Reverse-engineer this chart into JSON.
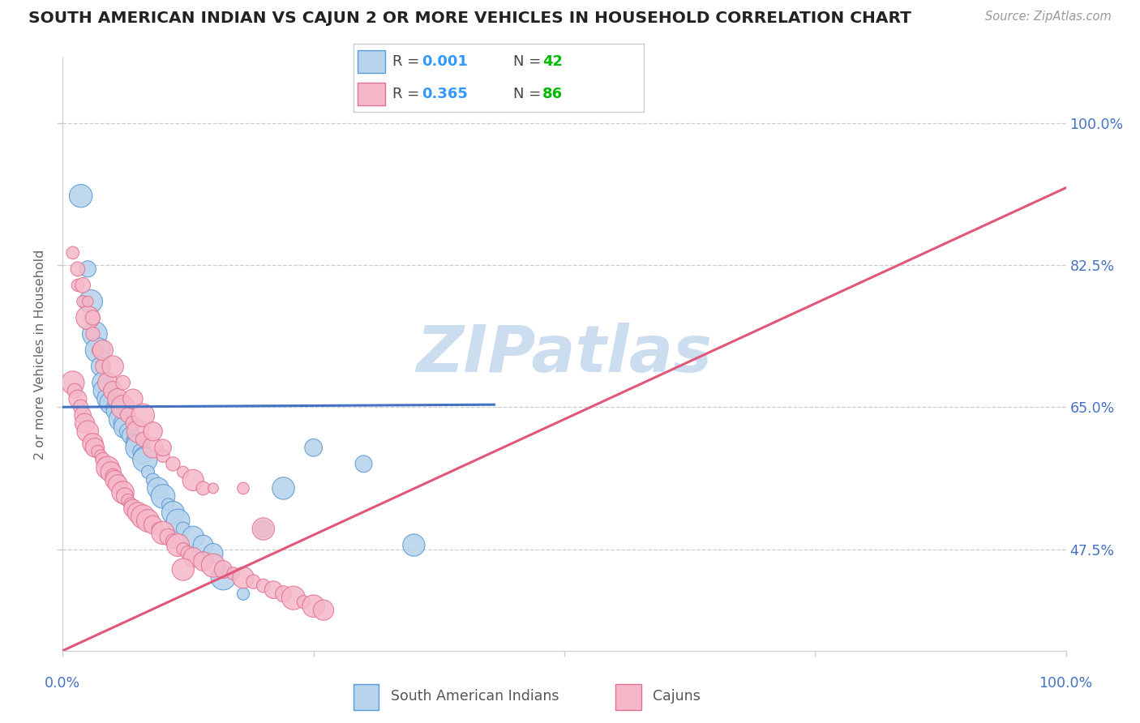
{
  "title": "SOUTH AMERICAN INDIAN VS CAJUN 2 OR MORE VEHICLES IN HOUSEHOLD CORRELATION CHART",
  "source": "Source: ZipAtlas.com",
  "ylabel": "2 or more Vehicles in Household",
  "yticks": [
    47.5,
    65.0,
    82.5,
    100.0
  ],
  "ytick_labels": [
    "47.5%",
    "65.0%",
    "82.5%",
    "100.0%"
  ],
  "xmin": 0.0,
  "xmax": 100.0,
  "ymin": 35.0,
  "ymax": 108.0,
  "blue_R": "0.001",
  "blue_N": "42",
  "pink_R": "0.365",
  "pink_N": "86",
  "blue_fill": "#b8d4ed",
  "pink_fill": "#f5b8c8",
  "blue_edge": "#5b9bd5",
  "pink_edge": "#e07090",
  "blue_label": "South American Indians",
  "pink_label": "Cajuns",
  "blue_line": "#4472c4",
  "pink_line": "#e05878",
  "watermark": "ZIPatlas",
  "watermark_color": "#ccddf0",
  "R_color": "#3399ff",
  "N_color": "#00bb00",
  "grid_color": "#cccccc",
  "title_color": "#222222",
  "source_color": "#999999",
  "ylabel_color": "#666666",
  "axis_label_color": "#4472c4",
  "bottom_label_color": "#555555",
  "blue_scatter_x": [
    1.8,
    2.5,
    2.8,
    3.2,
    3.5,
    3.8,
    4.0,
    4.2,
    4.5,
    4.8,
    5.0,
    5.2,
    5.5,
    5.8,
    6.0,
    6.2,
    6.5,
    6.8,
    7.0,
    7.2,
    7.5,
    7.8,
    8.0,
    8.2,
    8.5,
    9.0,
    9.5,
    10.0,
    10.5,
    11.0,
    11.5,
    12.0,
    13.0,
    14.0,
    15.0,
    16.0,
    18.0,
    20.0,
    22.0,
    25.0,
    30.0,
    35.0
  ],
  "blue_scatter_y": [
    91.0,
    82.0,
    78.0,
    74.0,
    72.0,
    70.0,
    68.0,
    67.0,
    66.0,
    65.5,
    65.0,
    64.5,
    64.0,
    63.5,
    63.0,
    62.5,
    62.0,
    61.5,
    61.0,
    60.5,
    60.0,
    59.5,
    59.0,
    58.5,
    57.0,
    56.0,
    55.0,
    54.0,
    53.0,
    52.0,
    51.0,
    50.0,
    49.0,
    48.0,
    47.0,
    44.0,
    42.0,
    50.0,
    55.0,
    60.0,
    58.0,
    48.0
  ],
  "pink_scatter_x": [
    1.0,
    1.2,
    1.5,
    1.8,
    2.0,
    2.2,
    2.5,
    2.8,
    3.0,
    3.2,
    3.5,
    3.8,
    4.0,
    4.2,
    4.5,
    4.8,
    5.0,
    5.2,
    5.5,
    5.8,
    6.0,
    6.2,
    6.5,
    6.8,
    7.0,
    7.5,
    8.0,
    8.5,
    9.0,
    9.5,
    10.0,
    10.5,
    11.0,
    11.5,
    12.0,
    12.5,
    13.0,
    14.0,
    15.0,
    16.0,
    17.0,
    18.0,
    19.0,
    20.0,
    21.0,
    22.0,
    23.0,
    24.0,
    25.0,
    26.0,
    1.5,
    2.0,
    2.5,
    3.0,
    3.5,
    4.0,
    4.5,
    5.0,
    5.5,
    6.0,
    6.5,
    7.0,
    7.5,
    8.0,
    9.0,
    10.0,
    11.0,
    12.0,
    13.0,
    14.0,
    1.0,
    1.5,
    2.0,
    2.5,
    3.0,
    4.0,
    5.0,
    6.0,
    7.0,
    8.0,
    9.0,
    10.0,
    15.0,
    20.0,
    12.0,
    18.0
  ],
  "pink_scatter_y": [
    68.0,
    67.0,
    66.0,
    65.0,
    64.0,
    63.0,
    62.0,
    61.0,
    60.5,
    60.0,
    59.5,
    59.0,
    58.5,
    58.0,
    57.5,
    57.0,
    56.5,
    56.0,
    55.5,
    55.0,
    54.5,
    54.0,
    53.5,
    53.0,
    52.5,
    52.0,
    51.5,
    51.0,
    50.5,
    50.0,
    49.5,
    49.0,
    48.5,
    48.0,
    47.5,
    47.0,
    46.5,
    46.0,
    45.5,
    45.0,
    44.5,
    44.0,
    43.5,
    43.0,
    42.5,
    42.0,
    41.5,
    41.0,
    40.5,
    40.0,
    80.0,
    78.0,
    76.0,
    74.0,
    72.0,
    70.0,
    68.0,
    67.0,
    66.0,
    65.0,
    64.0,
    63.0,
    62.0,
    61.0,
    60.0,
    59.0,
    58.0,
    57.0,
    56.0,
    55.0,
    84.0,
    82.0,
    80.0,
    78.0,
    76.0,
    72.0,
    70.0,
    68.0,
    66.0,
    64.0,
    62.0,
    60.0,
    55.0,
    50.0,
    45.0,
    55.0
  ],
  "blue_line_x": [
    0.0,
    43.0
  ],
  "blue_line_y": [
    65.0,
    65.3
  ],
  "pink_line_x": [
    0.0,
    100.0
  ],
  "pink_line_y": [
    35.0,
    92.0
  ]
}
